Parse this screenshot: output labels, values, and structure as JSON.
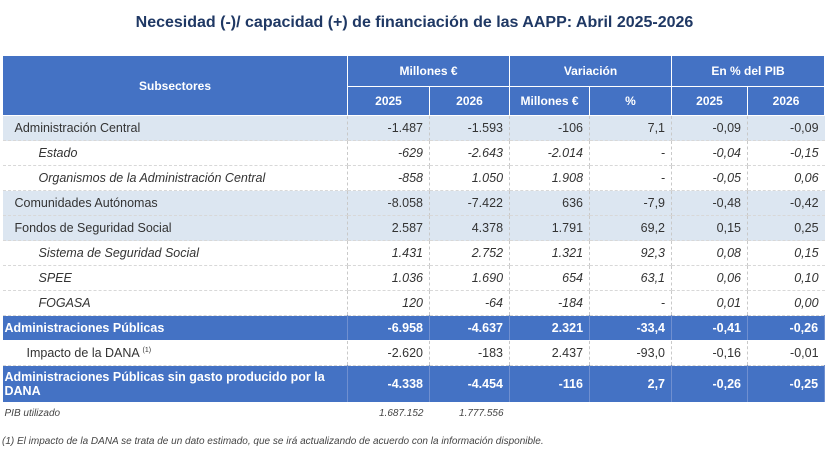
{
  "title": "Necesidad (-)/ capacidad (+) de financiación de las AAPP:  Abril 2025-2026",
  "header": {
    "subsectores": "Subsectores",
    "millones": "Millones €",
    "variacion": "Variación",
    "pib_pct": "En % del PIB",
    "y2025": "2025",
    "y2026": "2026",
    "var_millones": "Millones €",
    "var_pct": "%",
    "p2025": "2025",
    "p2026": "2026"
  },
  "rows": [
    {
      "label": "Administración Central",
      "m2025": "-1.487",
      "m2026": "-1.593",
      "vm": "-106",
      "vp": "7,1",
      "p2025": "-0,09",
      "p2026": "-0,09"
    },
    {
      "label": "Estado",
      "m2025": "-629",
      "m2026": "-2.643",
      "vm": "-2.014",
      "vp": "-",
      "p2025": "-0,04",
      "p2026": "-0,15"
    },
    {
      "label": "Organismos de la Administración Central",
      "m2025": "-858",
      "m2026": "1.050",
      "vm": "1.908",
      "vp": "-",
      "p2025": "-0,05",
      "p2026": "0,06"
    },
    {
      "label": "Comunidades Autónomas",
      "m2025": "-8.058",
      "m2026": "-7.422",
      "vm": "636",
      "vp": "-7,9",
      "p2025": "-0,48",
      "p2026": "-0,42"
    },
    {
      "label": "Fondos de Seguridad Social",
      "m2025": "2.587",
      "m2026": "4.378",
      "vm": "1.791",
      "vp": "69,2",
      "p2025": "0,15",
      "p2026": "0,25"
    },
    {
      "label": "Sistema de Seguridad Social",
      "m2025": "1.431",
      "m2026": "2.752",
      "vm": "1.321",
      "vp": "92,3",
      "p2025": "0,08",
      "p2026": "0,15"
    },
    {
      "label": "SPEE",
      "m2025": "1.036",
      "m2026": "1.690",
      "vm": "654",
      "vp": "63,1",
      "p2025": "0,06",
      "p2026": "0,10"
    },
    {
      "label": "FOGASA",
      "m2025": "120",
      "m2026": "-64",
      "vm": "-184",
      "vp": "-",
      "p2025": "0,01",
      "p2026": "0,00"
    },
    {
      "label": "Administraciones Públicas",
      "m2025": "-6.958",
      "m2026": "-4.637",
      "vm": "2.321",
      "vp": "-33,4",
      "p2025": "-0,41",
      "p2026": "-0,26"
    },
    {
      "label": "Impacto de la DANA",
      "sup": "(1)",
      "m2025": "-2.620",
      "m2026": "-183",
      "vm": "2.437",
      "vp": "-93,0",
      "p2025": "-0,16",
      "p2026": "-0,01"
    },
    {
      "label": "Administraciones Públicas sin gasto producido por la DANA",
      "m2025": "-4.338",
      "m2026": "-4.454",
      "vm": "-116",
      "vp": "2,7",
      "p2025": "-0,26",
      "p2026": "-0,25"
    }
  ],
  "pib": {
    "label": "PIB utilizado",
    "v2025": "1.687.152",
    "v2026": "1.777.556"
  },
  "note": "(1) El impacto de la DANA se trata de un dato estimado, que se irá actualizando de acuerdo con la información disponible."
}
